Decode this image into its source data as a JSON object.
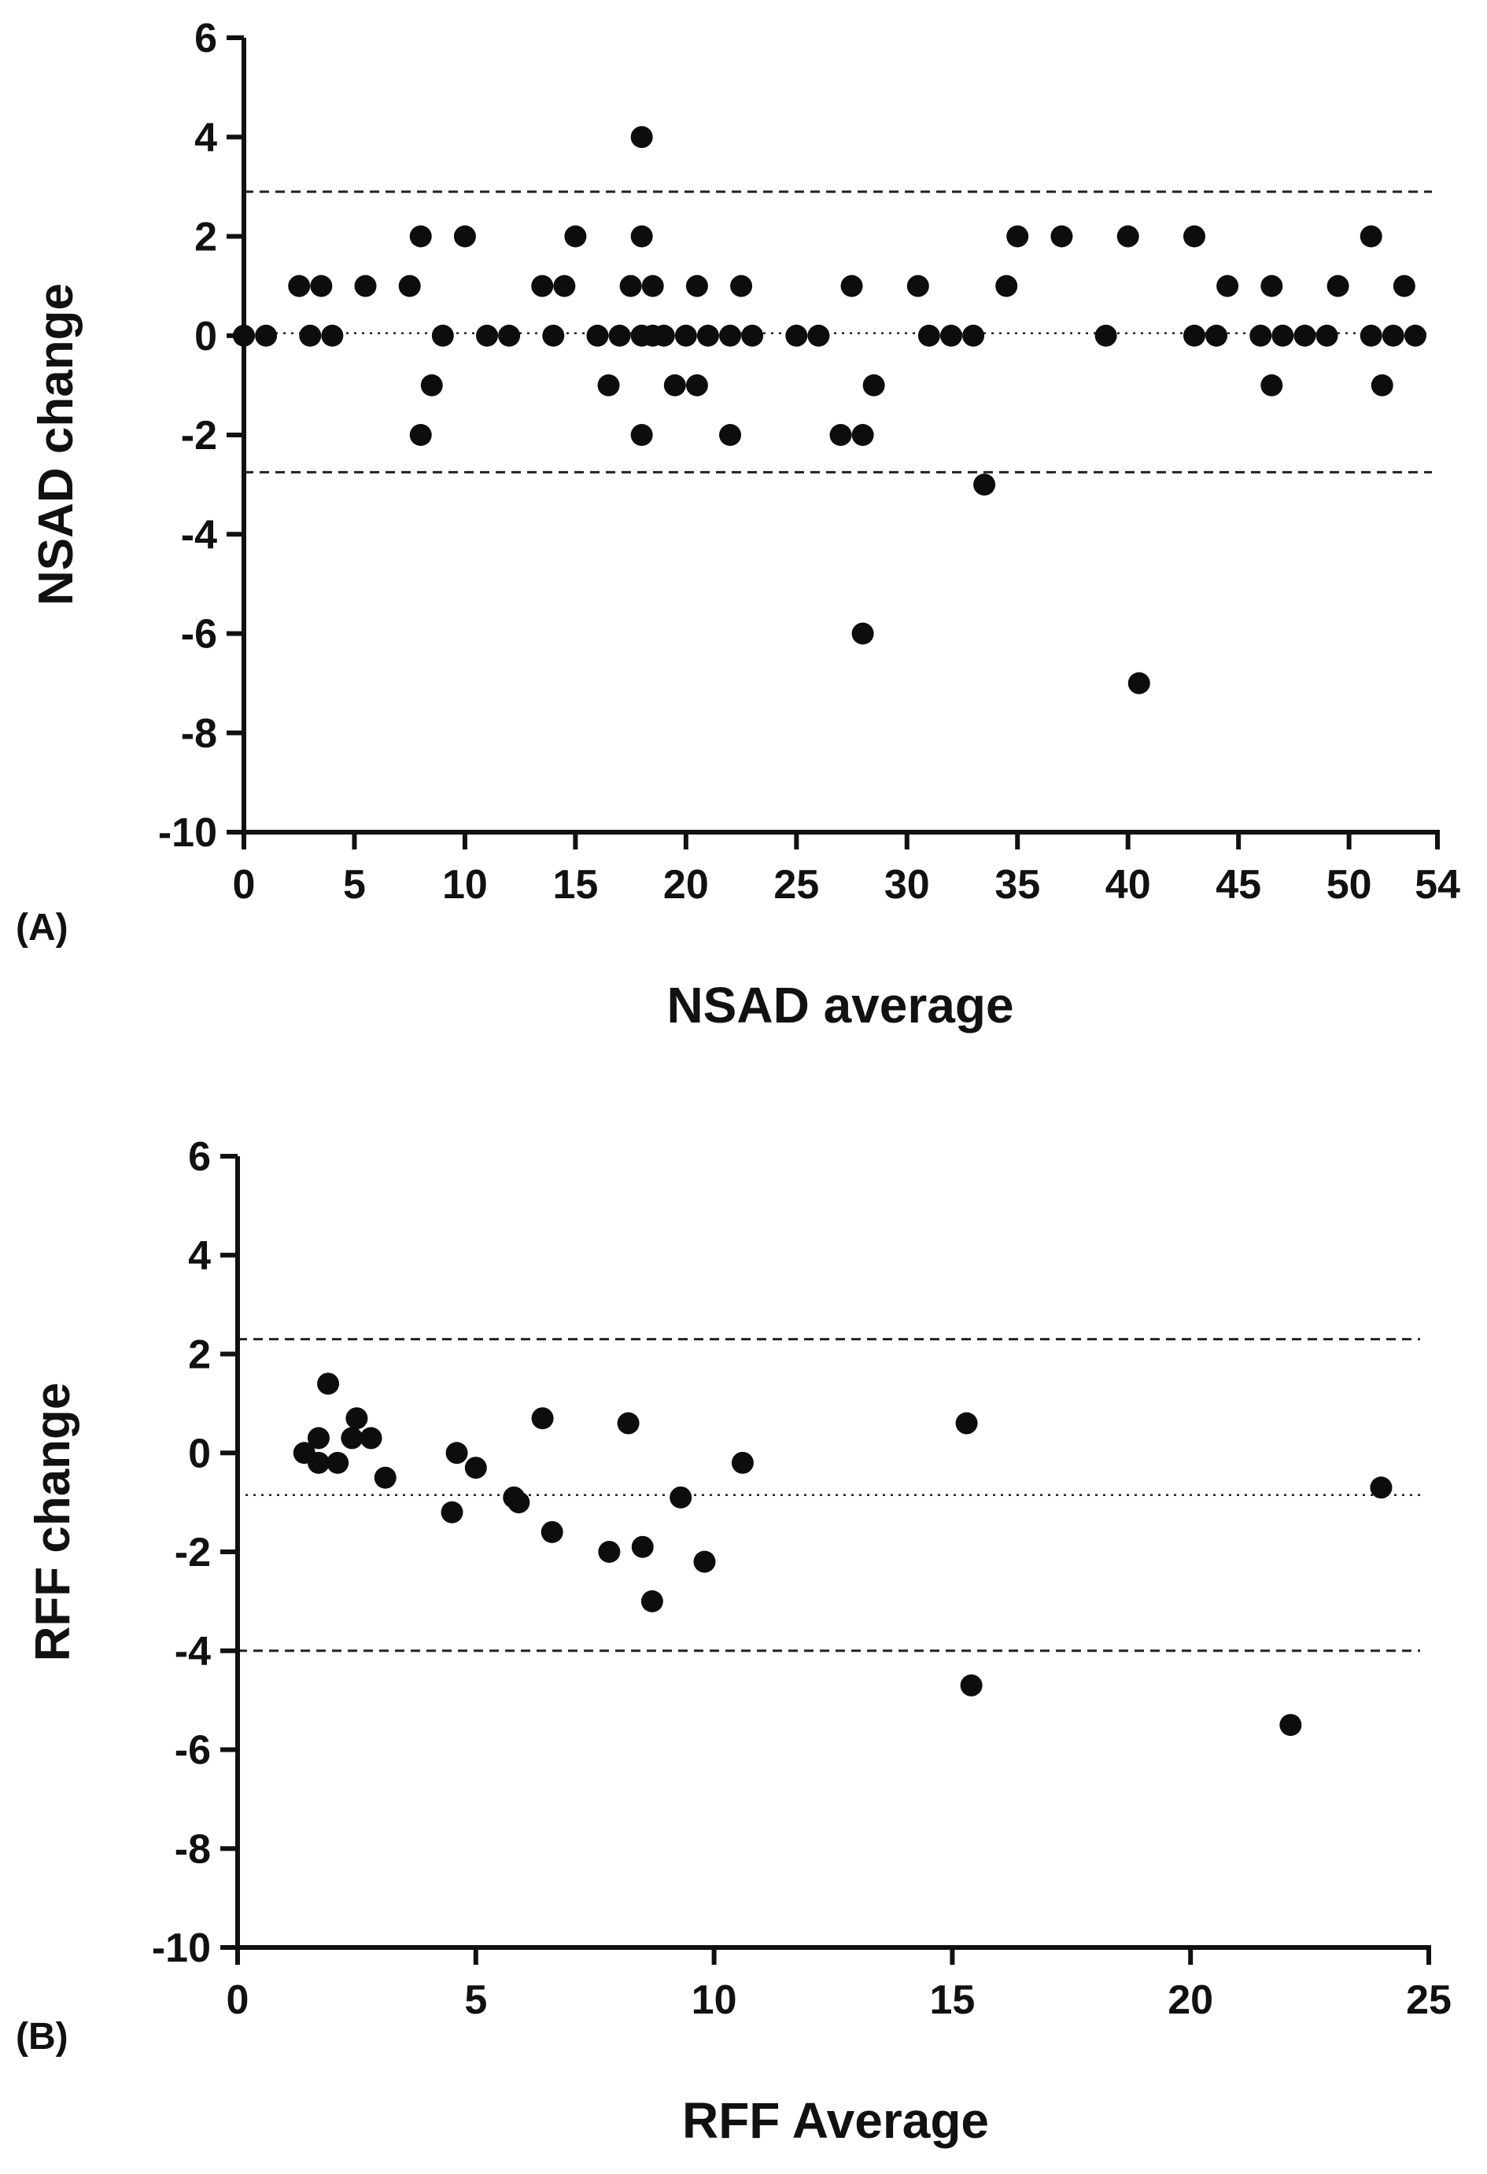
{
  "chart_data": [
    {
      "type": "scatter",
      "panel_label": "(A)",
      "xlabel": "NSAD average",
      "ylabel": "NSAD change",
      "xlim": [
        0,
        54
      ],
      "ylim": [
        -10,
        6
      ],
      "xticks": [
        0,
        5,
        10,
        15,
        20,
        25,
        30,
        35,
        40,
        45,
        50,
        54
      ],
      "yticks": [
        -10,
        -8,
        -6,
        -4,
        -2,
        0,
        2,
        4,
        6
      ],
      "reference_lines": [
        {
          "kind": "mean",
          "style": "dotted",
          "value": 0.05
        },
        {
          "kind": "upper_limit",
          "style": "dashed",
          "value": 2.9
        },
        {
          "kind": "lower_limit",
          "style": "dashed",
          "value": -2.75
        }
      ],
      "points": [
        [
          0,
          0
        ],
        [
          1,
          0
        ],
        [
          2.5,
          1
        ],
        [
          3,
          0
        ],
        [
          3.5,
          1
        ],
        [
          4,
          0
        ],
        [
          5.5,
          1
        ],
        [
          7.5,
          1
        ],
        [
          8,
          2
        ],
        [
          8,
          -2
        ],
        [
          8.5,
          -1
        ],
        [
          9,
          0
        ],
        [
          10,
          2
        ],
        [
          11,
          0
        ],
        [
          12,
          0
        ],
        [
          13.5,
          1
        ],
        [
          14,
          0
        ],
        [
          14.5,
          1
        ],
        [
          15,
          2
        ],
        [
          16,
          0
        ],
        [
          16.5,
          -1
        ],
        [
          17,
          0
        ],
        [
          17.5,
          1
        ],
        [
          18,
          4
        ],
        [
          18,
          2
        ],
        [
          18,
          0
        ],
        [
          18,
          -2
        ],
        [
          18.5,
          1
        ],
        [
          18.5,
          0
        ],
        [
          19,
          0
        ],
        [
          19.5,
          -1
        ],
        [
          20,
          0
        ],
        [
          20.5,
          1
        ],
        [
          20.5,
          -1
        ],
        [
          21,
          0
        ],
        [
          22,
          0
        ],
        [
          22,
          -2
        ],
        [
          22.5,
          1
        ],
        [
          23,
          0
        ],
        [
          25,
          0
        ],
        [
          26,
          0
        ],
        [
          27,
          -2
        ],
        [
          27.5,
          1
        ],
        [
          28,
          -2
        ],
        [
          28,
          -6
        ],
        [
          28.5,
          -1
        ],
        [
          30.5,
          1
        ],
        [
          31,
          0
        ],
        [
          32,
          0
        ],
        [
          33,
          0
        ],
        [
          33.5,
          -3
        ],
        [
          34.5,
          1
        ],
        [
          35,
          2
        ],
        [
          37,
          2
        ],
        [
          39,
          0
        ],
        [
          40,
          2
        ],
        [
          40.5,
          -7
        ],
        [
          43,
          2
        ],
        [
          43,
          0
        ],
        [
          44,
          0
        ],
        [
          44.5,
          1
        ],
        [
          46,
          0
        ],
        [
          46.5,
          1
        ],
        [
          46.5,
          -1
        ],
        [
          47,
          0
        ],
        [
          48,
          0
        ],
        [
          49,
          0
        ],
        [
          49.5,
          1
        ],
        [
          51,
          2
        ],
        [
          51,
          0
        ],
        [
          51.5,
          -1
        ],
        [
          52,
          0
        ],
        [
          52.5,
          1
        ],
        [
          53,
          0
        ]
      ]
    },
    {
      "type": "scatter",
      "panel_label": "(B)",
      "xlabel": "RFF Average",
      "ylabel": "RFF change",
      "xlim": [
        0,
        25
      ],
      "ylim": [
        -10,
        6
      ],
      "xticks": [
        0,
        5,
        10,
        15,
        20,
        25
      ],
      "yticks": [
        -10,
        -8,
        -6,
        -4,
        -2,
        0,
        2,
        4,
        6
      ],
      "reference_lines": [
        {
          "kind": "mean",
          "style": "dotted",
          "value": -0.85
        },
        {
          "kind": "upper_limit",
          "style": "dashed",
          "value": 2.3
        },
        {
          "kind": "lower_limit",
          "style": "dashed",
          "value": -4.0
        }
      ],
      "points": [
        [
          1.4,
          0
        ],
        [
          1.7,
          -0.2
        ],
        [
          1.7,
          0.3
        ],
        [
          1.9,
          1.4
        ],
        [
          2.1,
          -0.2
        ],
        [
          2.4,
          0.3
        ],
        [
          2.5,
          0.7
        ],
        [
          2.8,
          0.3
        ],
        [
          3.1,
          -0.5
        ],
        [
          4.5,
          -1.2
        ],
        [
          4.6,
          0
        ],
        [
          5.0,
          -0.3
        ],
        [
          5.8,
          -0.9
        ],
        [
          5.9,
          -1.0
        ],
        [
          6.4,
          0.7
        ],
        [
          6.6,
          -1.6
        ],
        [
          7.8,
          -2.0
        ],
        [
          8.2,
          0.6
        ],
        [
          8.5,
          -1.9
        ],
        [
          8.7,
          -3.0
        ],
        [
          9.3,
          -0.9
        ],
        [
          9.8,
          -2.2
        ],
        [
          10.6,
          -0.2
        ],
        [
          15.3,
          0.6
        ],
        [
          15.4,
          -4.7
        ],
        [
          22.1,
          -5.5
        ],
        [
          24.0,
          -0.7
        ]
      ]
    }
  ]
}
